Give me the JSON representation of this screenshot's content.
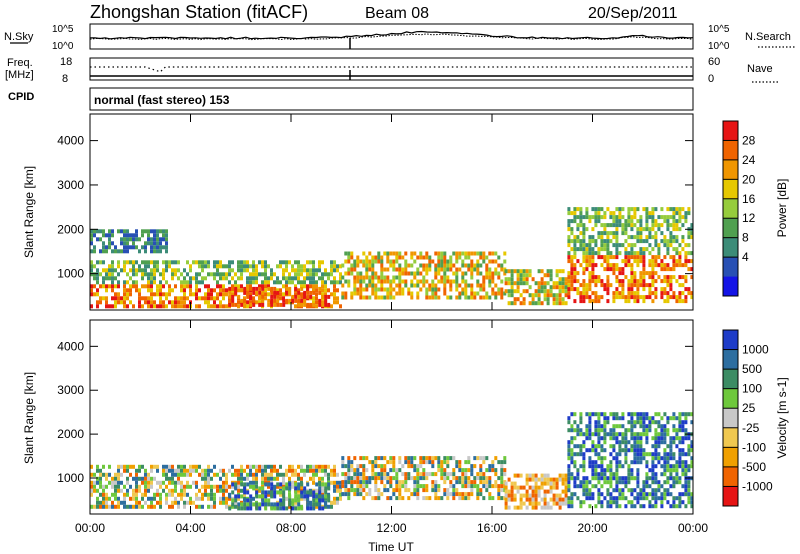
{
  "header": {
    "station": "Zhongshan Station (fitACF)",
    "beam": "Beam 08",
    "date": "20/Sep/2011",
    "cpid_value": "normal (fast stereo) 153"
  },
  "strip_labels": {
    "nsky": "N.Sky",
    "nsearch": "N.Search",
    "freq_line1": "Freq.",
    "freq_line2": "[MHz]",
    "nave": "Nave",
    "cpid": "CPID",
    "noise_top": "10^5",
    "noise_bottom": "10^0",
    "noise_right_top": "10^5",
    "noise_right_bottom": "10^0",
    "freq_top": "18",
    "freq_bottom": "8",
    "nave_top": "60",
    "nave_bottom": "0"
  },
  "chart_data": [
    {
      "type": "heatmap",
      "panel": "power",
      "ylabel": "Slant Range [km]",
      "ylim": [
        180,
        4600
      ],
      "yticks": [
        "1000",
        "2000",
        "3000",
        "4000"
      ],
      "colorbar_label": "Power [dB]",
      "colorbar_ticks": [
        "4",
        "8",
        "12",
        "16",
        "20",
        "24",
        "28"
      ],
      "colorbar_colors": [
        "#1414e6",
        "#2850b4",
        "#3c8c78",
        "#50a050",
        "#96cc3c",
        "#e6c800",
        "#f09600",
        "#f06400",
        "#e61414"
      ],
      "echo_regions": [
        {
          "t_start": 0.0,
          "t_end": 10.0,
          "r_min": 300,
          "r_max": 1300,
          "level": "high"
        },
        {
          "t_start": 0.0,
          "t_end": 3.0,
          "r_min": 1500,
          "r_max": 2000,
          "level": "low"
        },
        {
          "t_start": 5.5,
          "t_end": 9.5,
          "r_min": 300,
          "r_max": 700,
          "level": "very-high"
        },
        {
          "t_start": 10.0,
          "t_end": 16.5,
          "r_min": 500,
          "r_max": 1500,
          "level": "medium"
        },
        {
          "t_start": 16.5,
          "t_end": 19.0,
          "r_min": 300,
          "r_max": 1100,
          "level": "medium"
        },
        {
          "t_start": 19.0,
          "t_end": 24.0,
          "r_min": 400,
          "r_max": 2500,
          "level": "high"
        }
      ]
    },
    {
      "type": "heatmap",
      "panel": "velocity",
      "xlabel": "Time UT",
      "ylabel": "Slant Range [km]",
      "ylim": [
        180,
        4600
      ],
      "yticks": [
        "1000",
        "2000",
        "3000",
        "4000"
      ],
      "xticks": [
        "00:00",
        "04:00",
        "08:00",
        "12:00",
        "16:00",
        "20:00",
        "00:00"
      ],
      "colorbar_label": "Velocity [m s-1]",
      "colorbar_ticks": [
        "1000",
        "500",
        "100",
        "25",
        "-25",
        "-100",
        "-500",
        "-1000"
      ],
      "colorbar_colors": [
        "#1e3cc8",
        "#2d6ea0",
        "#3c8c64",
        "#6ec83c",
        "#c8c8c8",
        "#f0c850",
        "#f0a000",
        "#f06400",
        "#e61414"
      ],
      "echo_regions": [
        {
          "t_start": 0.0,
          "t_end": 10.0,
          "r_min": 300,
          "r_max": 1300,
          "level": "mixed"
        },
        {
          "t_start": 5.5,
          "t_end": 9.5,
          "r_min": 300,
          "r_max": 900,
          "level": "positive"
        },
        {
          "t_start": 10.0,
          "t_end": 16.5,
          "r_min": 500,
          "r_max": 1500,
          "level": "mixed"
        },
        {
          "t_start": 16.5,
          "t_end": 19.0,
          "r_min": 300,
          "r_max": 1100,
          "level": "negative"
        },
        {
          "t_start": 19.0,
          "t_end": 24.0,
          "r_min": 400,
          "r_max": 2500,
          "level": "positive"
        }
      ]
    }
  ]
}
